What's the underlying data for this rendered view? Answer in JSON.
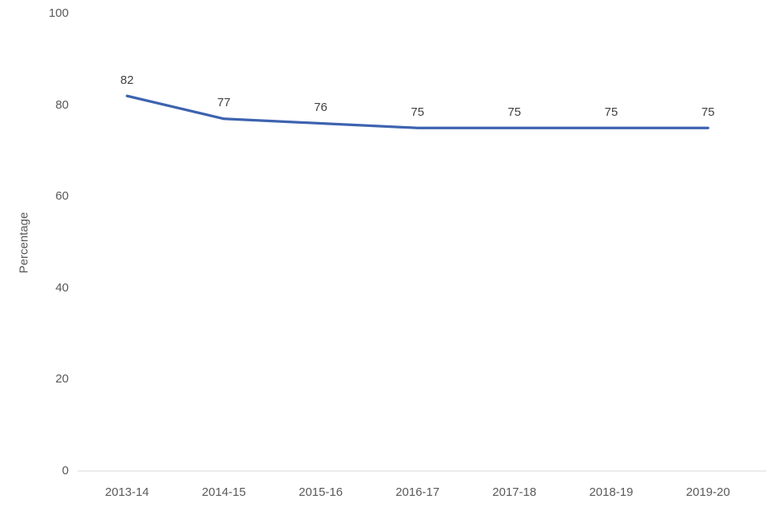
{
  "chart_data": {
    "type": "line",
    "categories": [
      "2013-14",
      "2014-15",
      "2015-16",
      "2016-17",
      "2017-18",
      "2018-19",
      "2019-20"
    ],
    "values": [
      82,
      77,
      76,
      75,
      75,
      75,
      75
    ],
    "title": "",
    "xlabel": "",
    "ylabel": "Percentage",
    "ylim": [
      0,
      100
    ],
    "yticks": [
      0,
      20,
      40,
      60,
      80,
      100
    ],
    "data_labels": [
      82,
      77,
      76,
      75,
      75,
      75,
      75
    ],
    "grid": false,
    "legend_position": "none",
    "line_color": "#3D63AF",
    "axis_line_color": "#D9D9D9",
    "tick_label_color": "#595959",
    "data_label_color": "#404040"
  }
}
